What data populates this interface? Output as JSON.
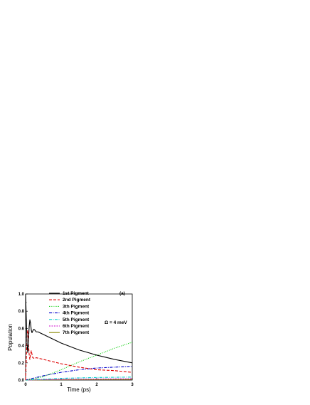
{
  "chart_data": {
    "type": "line",
    "xlabel": "Time (ps)",
    "ylabel": "Population",
    "xlim": [
      0,
      3
    ],
    "ylim": [
      0,
      1.0
    ],
    "xticks": [
      "0",
      "1",
      "2",
      "3"
    ],
    "yticks": [
      "0.0",
      "0.2",
      "0.4",
      "0.6",
      "0.8",
      "1.0"
    ],
    "panel_label": "(a)",
    "annotation": "Ω = 4 meV",
    "legend_position": "top-center",
    "series": [
      {
        "name": "1st Pigment",
        "color": "#000000",
        "dash": "solid",
        "x": [
          0,
          0.02,
          0.04,
          0.06,
          0.08,
          0.1,
          0.12,
          0.14,
          0.16,
          0.18,
          0.2,
          0.23,
          0.26,
          0.3,
          0.35,
          0.4,
          0.5,
          0.7,
          1.0,
          1.5,
          2.0,
          2.5,
          3.0
        ],
        "y": [
          1.0,
          0.72,
          0.42,
          0.32,
          0.45,
          0.62,
          0.7,
          0.66,
          0.58,
          0.55,
          0.57,
          0.59,
          0.58,
          0.56,
          0.56,
          0.55,
          0.53,
          0.49,
          0.43,
          0.35,
          0.29,
          0.24,
          0.2
        ]
      },
      {
        "name": "2nd Pigment",
        "color": "#dd0000",
        "dash": "dashed",
        "x": [
          0,
          0.02,
          0.04,
          0.06,
          0.08,
          0.1,
          0.12,
          0.14,
          0.16,
          0.18,
          0.2,
          0.25,
          0.3,
          0.4,
          0.5,
          0.7,
          1.0,
          1.5,
          2.0,
          2.5,
          3.0
        ],
        "y": [
          0.0,
          0.25,
          0.52,
          0.58,
          0.42,
          0.3,
          0.24,
          0.3,
          0.34,
          0.3,
          0.26,
          0.25,
          0.26,
          0.25,
          0.24,
          0.22,
          0.19,
          0.15,
          0.12,
          0.11,
          0.09
        ]
      },
      {
        "name": "3th Pigment",
        "color": "#00cc00",
        "dash": "dotted",
        "x": [
          0,
          0.2,
          0.5,
          1.0,
          1.5,
          2.0,
          2.5,
          3.0
        ],
        "y": [
          0.0,
          0.01,
          0.04,
          0.12,
          0.21,
          0.29,
          0.37,
          0.44
        ]
      },
      {
        "name": "4th Pigment",
        "color": "#0000cc",
        "dash": "dashdot",
        "x": [
          0,
          0.2,
          0.5,
          1.0,
          1.5,
          2.0,
          2.5,
          3.0
        ],
        "y": [
          0.0,
          0.02,
          0.05,
          0.09,
          0.12,
          0.14,
          0.15,
          0.16
        ]
      },
      {
        "name": "5th Pigment",
        "color": "#00cccc",
        "dash": "dashdot",
        "x": [
          0,
          0.5,
          1.0,
          2.0,
          3.0
        ],
        "y": [
          0.0,
          0.01,
          0.02,
          0.03,
          0.035
        ]
      },
      {
        "name": "6th Pigment",
        "color": "#cc00cc",
        "dash": "shortdash",
        "x": [
          0,
          0.5,
          1.0,
          2.0,
          3.0
        ],
        "y": [
          0.0,
          0.005,
          0.008,
          0.012,
          0.015
        ]
      },
      {
        "name": "7th Pigment",
        "color": "#888800",
        "dash": "solid",
        "x": [
          0,
          0.5,
          1.0,
          2.0,
          3.0
        ],
        "y": [
          0.0,
          0.002,
          0.004,
          0.006,
          0.008
        ]
      }
    ]
  }
}
